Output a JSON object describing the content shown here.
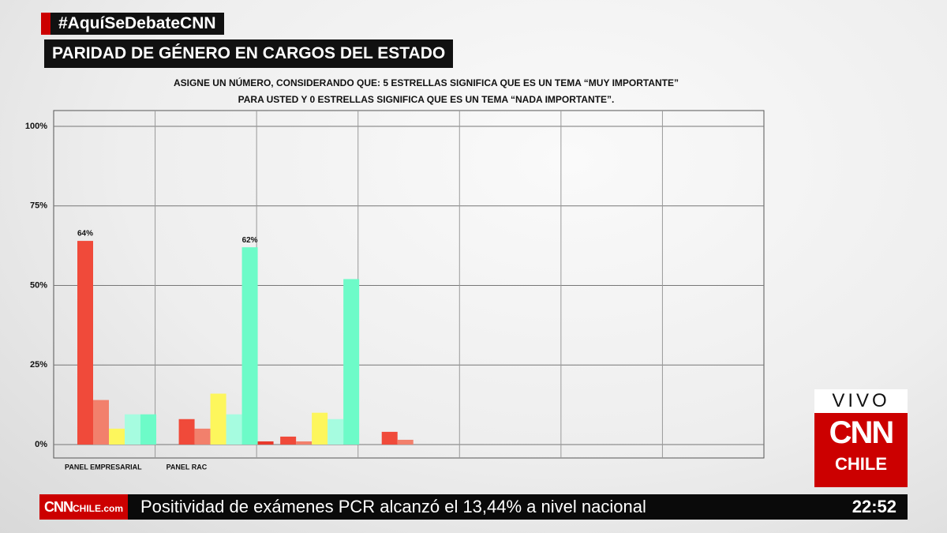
{
  "hashtag": "#AquíSeDebateCNN",
  "headline": "PARIDAD DE GÉNERO EN CARGOS DEL ESTADO",
  "ticker": {
    "logo": "CNN",
    "logo_suffix": "CHILE.com",
    "text": "Positividad de exámenes PCR alcanzó el 13,44% a nivel nacional",
    "time": "22:52"
  },
  "live_badge": {
    "live": "VIVO",
    "brand": "CNN",
    "country": "CHILE"
  },
  "chart_data": {
    "type": "bar",
    "subtitle": [
      "ASIGNE UN NÚMERO, CONSIDERANDO QUE: 5 ESTRELLAS SIGNIFICA QUE ES UN TEMA “MUY IMPORTANTE”",
      "PARA USTED Y 0 ESTRELLAS SIGNIFICA QUE ES UN TEMA “NADA IMPORTANTE”."
    ],
    "categories": [
      "PANEL EMPRESARIAL",
      "PANEL RAC",
      null,
      null,
      null,
      null,
      null
    ],
    "series": [
      {
        "color": "#f04a3a",
        "values": [
          64,
          8,
          2.5,
          4,
          null,
          null,
          null
        ],
        "value_labels": [
          "64%",
          null,
          null,
          null,
          null,
          null,
          null
        ]
      },
      {
        "color": "#f2806c",
        "values": [
          14,
          5,
          1,
          1.5,
          null,
          null,
          null
        ]
      },
      {
        "color": "#fdf65c",
        "values": [
          5,
          16,
          10,
          null,
          null,
          null,
          null
        ]
      },
      {
        "color": "#a6fce0",
        "values": [
          9.5,
          9.5,
          8,
          null,
          null,
          null,
          null
        ]
      },
      {
        "color": "#6dfbc8",
        "values": [
          9.5,
          62,
          52,
          null,
          null,
          null,
          null
        ],
        "value_labels": [
          null,
          "62%",
          null,
          null,
          null,
          null,
          null
        ]
      },
      {
        "color": "#e8392b",
        "values": [
          null,
          1,
          null,
          null,
          null,
          null,
          null
        ]
      }
    ],
    "ylim": [
      0,
      100
    ],
    "yticks": [
      {
        "value": 0,
        "label": "0%"
      },
      {
        "value": 25,
        "label": "25%"
      },
      {
        "value": 50,
        "label": "50%"
      },
      {
        "value": 75,
        "label": "75%"
      },
      {
        "value": 100,
        "label": "100%"
      }
    ],
    "grid": true
  }
}
